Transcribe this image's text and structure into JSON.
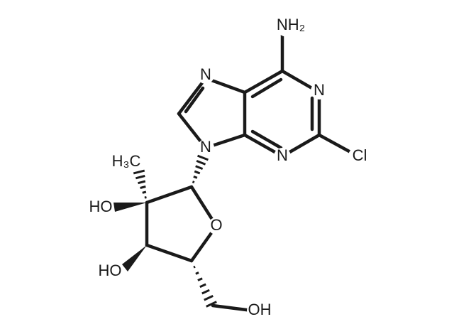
{
  "atoms": [
    {
      "label": "NH₂"
    },
    {
      "label": "N"
    },
    {
      "label": "N"
    },
    {
      "label": "Cl"
    },
    {
      "label": "N"
    },
    {
      "label": "N"
    },
    {
      "label": "H₃C"
    },
    {
      "label": "HO"
    },
    {
      "label": "O"
    },
    {
      "label": "HO"
    },
    {
      "label": "OH"
    }
  ]
}
